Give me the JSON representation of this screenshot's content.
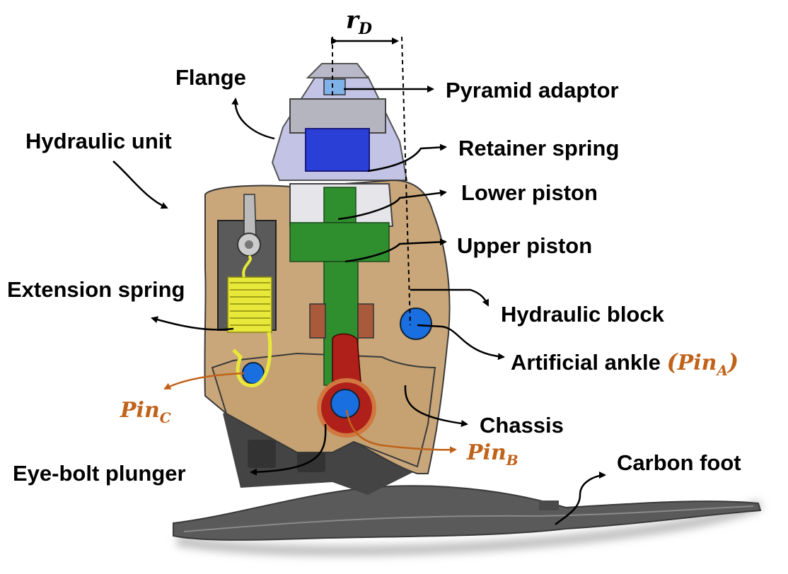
{
  "labels": {
    "r_d_main": "r",
    "r_d_sub": "D",
    "flange": "Flange",
    "hydraulic_unit": "Hydraulic unit",
    "pyramid_adaptor": "Pyramid adaptor",
    "retainer_spring": "Retainer spring",
    "lower_piston": "Lower piston",
    "upper_piston": "Upper piston",
    "extension_spring": "Extension spring",
    "hydraulic_block": "Hydraulic block",
    "artificial_ankle": "Artificial ankle ",
    "pin_a_paren_open": "(",
    "pin_a_main": "Pin",
    "pin_a_sub": "A",
    "pin_a_paren_close": ")",
    "pin_c_main": "Pin",
    "pin_c_sub": "C",
    "chassis": "Chassis",
    "pin_b_main": "Pin",
    "pin_b_sub": "B",
    "eye_bolt_plunger": "Eye-bolt plunger",
    "carbon_foot": "Carbon foot"
  },
  "colors": {
    "chassis": "#c9a77a",
    "hydraulic_unit": "#c3c3e6",
    "retainer": "#2a3fd6",
    "piston": "#2f8f2f",
    "plunger": "#b0201a",
    "pin": "#1a6fe0",
    "spring": "#e8e83a",
    "foot": "#555555",
    "pin_label": "#c0621a"
  }
}
